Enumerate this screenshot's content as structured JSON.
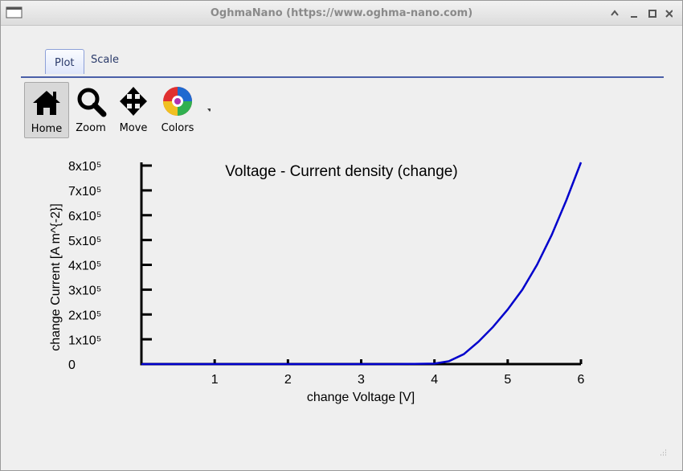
{
  "window": {
    "title": "OghmaNano (https://www.oghma-nano.com)"
  },
  "tabs": [
    "Plot",
    "Scale"
  ],
  "toolbar": [
    "Home",
    "Zoom",
    "Move",
    "Colors"
  ],
  "chart_data": {
    "type": "line",
    "title": "Voltage - Current density (change)",
    "x_label": "change Voltage [V]",
    "y_label": "change Current [A m^{-2}]",
    "x": [
      0,
      1,
      2,
      3,
      3.5,
      4,
      4.2,
      4.4,
      4.6,
      4.8,
      5,
      5.2,
      5.4,
      5.6,
      5.8,
      6
    ],
    "values": [
      0,
      0,
      0,
      0,
      0,
      2000,
      12000,
      40000,
      90000,
      150000,
      220000,
      300000,
      400000,
      520000,
      660000,
      813000
    ],
    "color": "#0000cc",
    "xlim": [
      0,
      6
    ],
    "xticks": [
      1,
      2,
      3,
      4,
      5,
      6
    ],
    "ylim": [
      0,
      813000
    ],
    "yticks": [
      0,
      {
        "value": 100000,
        "label": "1x10⁵"
      },
      {
        "value": 200000,
        "label": "2x10⁵"
      },
      {
        "value": 300000,
        "label": "3x10⁵"
      },
      {
        "value": 400000,
        "label": "4x10⁵"
      },
      {
        "value": 500000,
        "label": "5x10⁵"
      },
      {
        "value": 600000,
        "label": "6x10⁵"
      },
      {
        "value": 700000,
        "label": "7x10⁵"
      },
      {
        "value": 800000,
        "label": "8x10⁵"
      }
    ],
    "grid": false
  }
}
